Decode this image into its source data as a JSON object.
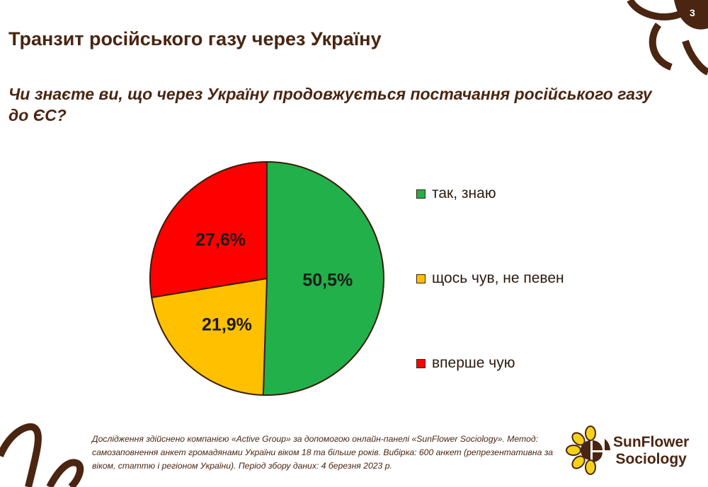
{
  "header": {
    "title": "Транзит російського газу через Україну",
    "page_number": "3"
  },
  "question": "Чи знаєте ви, що через Україну продовжується постачання російського газу до ЄС?",
  "chart_data": {
    "type": "pie",
    "title": "",
    "categories": [
      "так, знаю",
      "щось чув, не певен",
      "вперше чую"
    ],
    "values": [
      50.5,
      21.9,
      27.6
    ],
    "value_labels": [
      "50,5%",
      "21,9%",
      "27,6%"
    ],
    "colors": [
      "#22b04b",
      "#ffc000",
      "#ff0000"
    ],
    "start": "12 o'clock, clockwise",
    "legend_placement": "right"
  },
  "footnote": "Дослідження здійснено компанією «Active Group» за допомогою онлайн-панелі «SunFlower Sociology». Метод: самозаповнення анкет громадянами України віком 18 та більше років. Вибірка: 600 анкет (репрезентативна за віком, статтю і регіоном України). Період збору даних: 4 березня 2023 р.",
  "logo": {
    "line1": "SunFlower",
    "line2": "Sociology"
  },
  "colors": {
    "brand_brown": "#4a2511",
    "logo_yellow": "#f5d21a"
  }
}
